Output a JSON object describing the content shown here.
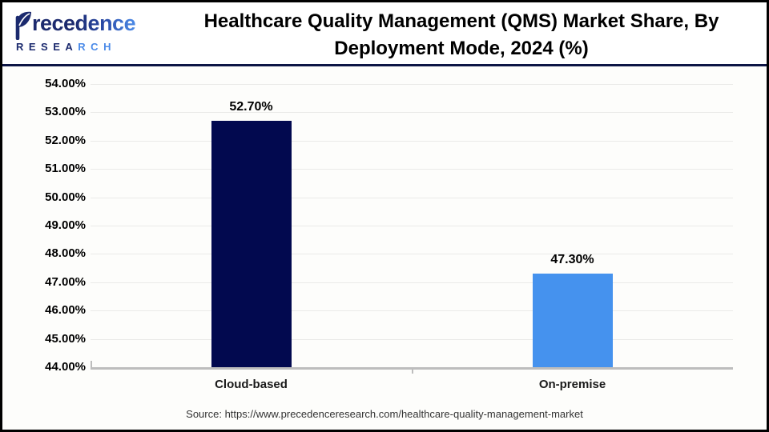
{
  "logo": {
    "brand_rest": "recedence",
    "brand_sub_primary": "RESEA",
    "brand_sub_accent": "RCH"
  },
  "header": {
    "title_line1": "Healthcare Quality Management (QMS) Market Share, By",
    "title_line2": "Deployment Mode, 2024 (%)"
  },
  "footer": {
    "source": "Source: https://www.precedenceresearch.com/healthcare-quality-management-market"
  },
  "colors": {
    "navy_bar": "#02094F",
    "blue_bar": "#4592EE",
    "header_rule": "#0D1545",
    "gridline": "#E9E9E7",
    "baseline": "#BDBDBD"
  },
  "chart_data": {
    "type": "bar",
    "title": "Healthcare Quality Management (QMS) Market Share, By Deployment Mode, 2024 (%)",
    "categories": [
      "Cloud-based",
      "On-premise"
    ],
    "values": [
      52.7,
      47.3
    ],
    "value_labels": [
      "52.70%",
      "47.30%"
    ],
    "bar_colors": [
      "#02094F",
      "#4592EE"
    ],
    "xlabel": "",
    "ylabel": "",
    "ylim": [
      44,
      54
    ],
    "y_tick_step": 1,
    "y_ticks": [
      "54.00%",
      "53.00%",
      "52.00%",
      "51.00%",
      "50.00%",
      "49.00%",
      "48.00%",
      "47.00%",
      "46.00%",
      "45.00%",
      "44.00%"
    ],
    "grid": true,
    "legend_position": "none"
  }
}
